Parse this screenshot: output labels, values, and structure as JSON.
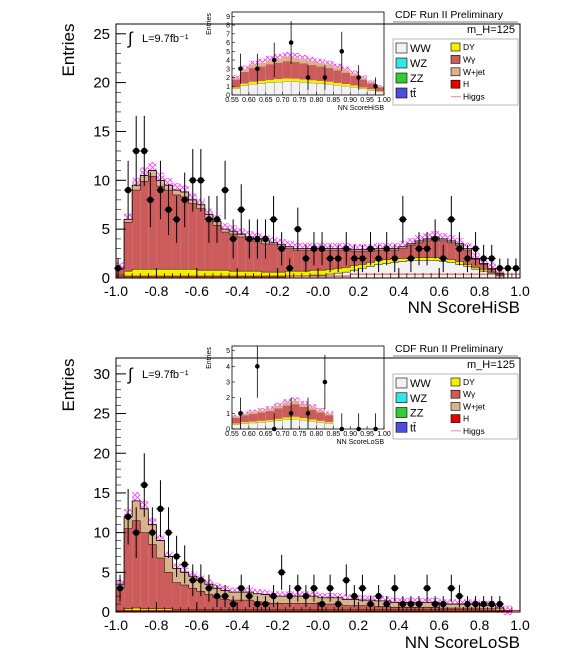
{
  "legend_entries": {
    "ww": "WW",
    "wz": "WZ",
    "zz": "ZZ",
    "tt": "tt̄",
    "dy": "DY",
    "wgamma": "Wγ",
    "wjet": "W+jet",
    "h": "H",
    "higgs": "Higgs"
  },
  "colors": {
    "ww": "#f2f2f2",
    "wz": "#33e5e5",
    "zz": "#33cc33",
    "tt": "#4d4dd9",
    "dy": "#f2f200",
    "wgamma": "#cc5c5c",
    "wjet": "#d9b38c",
    "h": "#e60000",
    "higgs": "#e6a0a0",
    "uncertainty": "#ff33ff"
  },
  "chart_data": [
    {
      "type": "bar",
      "header": "CDF Run II Preliminary",
      "mass_label": "m_H=125",
      "lumi": "L=9.7fb⁻¹",
      "xlabel": "NN ScoreHiSB",
      "ylabel": "Entries",
      "xlim": [
        -1.0,
        1.0
      ],
      "ylim": [
        0,
        26
      ],
      "xticks": [
        "-1.0",
        "-0.8",
        "-0.6",
        "-0.4",
        "-0.2",
        "-0.0",
        "0.2",
        "0.4",
        "0.6",
        "0.8",
        "1.0"
      ],
      "yticks": [
        "0",
        "5",
        "10",
        "15",
        "20",
        "25"
      ],
      "bin_width": 0.04,
      "x_start": -1.0,
      "stack_order": [
        "tt",
        "zz",
        "wz",
        "ww",
        "h",
        "dy",
        "wgamma",
        "wjet"
      ],
      "total": [
        1.0,
        6.0,
        9.5,
        10.5,
        11.0,
        10.0,
        9.5,
        9.0,
        8.8,
        8.0,
        7.5,
        6.5,
        5.8,
        5.0,
        4.8,
        4.5,
        4.2,
        4.0,
        3.8,
        3.6,
        3.4,
        3.2,
        3.0,
        3.0,
        3.0,
        3.0,
        3.0,
        3.0,
        3.0,
        2.9,
        2.9,
        2.9,
        3.0,
        3.0,
        3.0,
        3.2,
        3.5,
        3.8,
        4.0,
        4.2,
        4.0,
        3.8,
        3.5,
        3.0,
        2.0,
        1.5,
        1.0,
        0.5,
        0.0,
        0.0
      ],
      "ww": [
        0.1,
        0.1,
        0.1,
        0.1,
        0.1,
        0.1,
        0.1,
        0.1,
        0.1,
        0.1,
        0.1,
        0.1,
        0.1,
        0.1,
        0.1,
        0.1,
        0.1,
        0.1,
        0.1,
        0.1,
        0.1,
        0.2,
        0.2,
        0.2,
        0.3,
        0.3,
        0.4,
        0.5,
        0.6,
        0.8,
        1.0,
        1.2,
        1.4,
        1.5,
        1.6,
        1.7,
        1.8,
        1.8,
        1.8,
        1.8,
        1.7,
        1.6,
        1.4,
        1.2,
        0.9,
        0.7,
        0.5,
        0.2,
        0.0,
        0.0
      ],
      "dy": [
        0.2,
        0.6,
        0.8,
        0.8,
        0.8,
        0.8,
        0.8,
        0.8,
        0.8,
        0.8,
        0.7,
        0.7,
        0.7,
        0.7,
        0.6,
        0.6,
        0.6,
        0.6,
        0.5,
        0.5,
        0.5,
        0.5,
        0.5,
        0.5,
        0.5,
        0.5,
        0.5,
        0.5,
        0.5,
        0.5,
        0.4,
        0.4,
        0.4,
        0.4,
        0.4,
        0.3,
        0.3,
        0.3,
        0.3,
        0.3,
        0.3,
        0.3,
        0.3,
        0.2,
        0.2,
        0.2,
        0.1,
        0.1,
        0.0,
        0.0
      ],
      "wjet": [
        0.1,
        0.3,
        0.5,
        0.6,
        0.6,
        0.6,
        0.5,
        0.5,
        0.5,
        0.4,
        0.4,
        0.4,
        0.4,
        0.3,
        0.3,
        0.3,
        0.3,
        0.3,
        0.3,
        0.2,
        0.2,
        0.2,
        0.2,
        0.2,
        0.2,
        0.2,
        0.2,
        0.2,
        0.2,
        0.2,
        0.2,
        0.2,
        0.2,
        0.2,
        0.2,
        0.2,
        0.2,
        0.2,
        0.2,
        0.2,
        0.2,
        0.2,
        0.2,
        0.2,
        0.1,
        0.1,
        0.1,
        0.1,
        0.0,
        0.0
      ],
      "data_points": [
        {
          "x": -0.99,
          "y": 1,
          "e": 1.0
        },
        {
          "x": -0.94,
          "y": 9,
          "e": 3.0
        },
        {
          "x": -0.9,
          "y": 13,
          "e": 3.6
        },
        {
          "x": -0.86,
          "y": 13,
          "e": 3.6
        },
        {
          "x": -0.83,
          "y": 8,
          "e": 2.8
        },
        {
          "x": -0.78,
          "y": 9,
          "e": 3.0
        },
        {
          "x": -0.74,
          "y": 7,
          "e": 2.6
        },
        {
          "x": -0.7,
          "y": 6,
          "e": 2.4
        },
        {
          "x": -0.66,
          "y": 8,
          "e": 2.8
        },
        {
          "x": -0.62,
          "y": 10,
          "e": 3.2
        },
        {
          "x": -0.58,
          "y": 10,
          "e": 3.2
        },
        {
          "x": -0.54,
          "y": 6,
          "e": 2.4
        },
        {
          "x": -0.5,
          "y": 6,
          "e": 2.4
        },
        {
          "x": -0.46,
          "y": 9,
          "e": 3.0
        },
        {
          "x": -0.42,
          "y": 4,
          "e": 2.0
        },
        {
          "x": -0.38,
          "y": 7,
          "e": 2.6
        },
        {
          "x": -0.34,
          "y": 4,
          "e": 2.0
        },
        {
          "x": -0.3,
          "y": 4,
          "e": 2.0
        },
        {
          "x": -0.26,
          "y": 4,
          "e": 2.0
        },
        {
          "x": -0.22,
          "y": 6,
          "e": 2.4
        },
        {
          "x": -0.18,
          "y": 3,
          "e": 1.7
        },
        {
          "x": -0.14,
          "y": 1,
          "e": 1.0
        },
        {
          "x": -0.1,
          "y": 5,
          "e": 2.2
        },
        {
          "x": -0.06,
          "y": 2,
          "e": 1.4
        },
        {
          "x": -0.02,
          "y": 3,
          "e": 1.7
        },
        {
          "x": 0.02,
          "y": 3,
          "e": 1.7
        },
        {
          "x": 0.06,
          "y": 2,
          "e": 1.4
        },
        {
          "x": 0.1,
          "y": 2,
          "e": 1.4
        },
        {
          "x": 0.14,
          "y": 3,
          "e": 1.7
        },
        {
          "x": 0.18,
          "y": 2,
          "e": 1.4
        },
        {
          "x": 0.22,
          "y": 2,
          "e": 1.4
        },
        {
          "x": 0.26,
          "y": 3,
          "e": 1.7
        },
        {
          "x": 0.3,
          "y": 2,
          "e": 1.4
        },
        {
          "x": 0.34,
          "y": 3,
          "e": 1.7
        },
        {
          "x": 0.38,
          "y": 2,
          "e": 1.4
        },
        {
          "x": 0.42,
          "y": 6,
          "e": 2.4
        },
        {
          "x": 0.46,
          "y": 2,
          "e": 1.4
        },
        {
          "x": 0.5,
          "y": 3,
          "e": 1.7
        },
        {
          "x": 0.54,
          "y": 3,
          "e": 1.7
        },
        {
          "x": 0.58,
          "y": 4,
          "e": 2.0
        },
        {
          "x": 0.62,
          "y": 2,
          "e": 1.4
        },
        {
          "x": 0.66,
          "y": 6,
          "e": 2.4
        },
        {
          "x": 0.7,
          "y": 3,
          "e": 1.7
        },
        {
          "x": 0.74,
          "y": 2,
          "e": 1.4
        },
        {
          "x": 0.78,
          "y": 3,
          "e": 1.7
        },
        {
          "x": 0.82,
          "y": 2,
          "e": 1.4
        },
        {
          "x": 0.86,
          "y": 2,
          "e": 1.4
        },
        {
          "x": 0.9,
          "y": 1,
          "e": 1.0
        },
        {
          "x": 0.94,
          "y": 1,
          "e": 1.0
        },
        {
          "x": 0.98,
          "y": 1,
          "e": 1.0
        }
      ],
      "inset": {
        "ylabel": "Entries",
        "xlabel": "NN ScoreHiSB",
        "xlim": [
          0.55,
          1.0
        ],
        "ylim": [
          0,
          9.5
        ],
        "xticks": [
          "0.55",
          "0.60",
          "0.65",
          "0.70",
          "0.75",
          "0.80",
          "0.85",
          "0.90",
          "0.95",
          "1.00"
        ],
        "yticks": [
          "0",
          "1",
          "2",
          "3",
          "4",
          "5",
          "6",
          "7",
          "8",
          "9"
        ],
        "total": [
          2.0,
          3.0,
          3.5,
          3.7,
          4.0,
          4.2,
          4.4,
          4.3,
          4.1,
          3.9,
          3.7,
          3.5,
          3.2,
          2.9,
          2.5,
          2.0,
          1.5,
          1.0
        ],
        "data_points": [
          {
            "x": 0.575,
            "y": 3
          },
          {
            "x": 0.625,
            "y": 3
          },
          {
            "x": 0.675,
            "y": 4
          },
          {
            "x": 0.725,
            "y": 6
          },
          {
            "x": 0.775,
            "y": 2
          },
          {
            "x": 0.825,
            "y": 2
          },
          {
            "x": 0.875,
            "y": 5
          },
          {
            "x": 0.925,
            "y": 2
          },
          {
            "x": 0.975,
            "y": 1
          }
        ]
      }
    },
    {
      "type": "bar",
      "header": "CDF Run II Preliminary",
      "mass_label": "m_H=125",
      "lumi": "L=9.7fb⁻¹",
      "xlabel": "NN ScoreLoSB",
      "ylabel": "Entries",
      "xlim": [
        -1.0,
        1.0
      ],
      "ylim": [
        0,
        32
      ],
      "xticks": [
        "-1.0",
        "-0.8",
        "-0.6",
        "-0.4",
        "-0.2",
        "-0.0",
        "0.2",
        "0.4",
        "0.6",
        "0.8",
        "1.0"
      ],
      "yticks": [
        "0",
        "5",
        "10",
        "15",
        "20",
        "25",
        "30"
      ],
      "bin_width": 0.04,
      "x_start": -1.0,
      "stack_order": [
        "tt",
        "zz",
        "wz",
        "ww",
        "h",
        "dy",
        "wgamma",
        "wjet"
      ],
      "total": [
        3.5,
        12.0,
        14.0,
        13.0,
        11.0,
        9.0,
        7.0,
        5.5,
        5.0,
        4.5,
        4.0,
        3.5,
        3.0,
        2.7,
        2.5,
        2.5,
        2.5,
        2.3,
        2.2,
        2.0,
        2.0,
        2.0,
        2.0,
        2.0,
        2.0,
        1.8,
        1.8,
        1.8,
        1.6,
        1.6,
        1.5,
        1.5,
        1.4,
        1.4,
        1.2,
        1.2,
        1.2,
        1.2,
        1.2,
        1.2,
        1.0,
        1.0,
        1.0,
        1.0,
        1.0,
        0.8,
        0.8,
        0.5,
        0.2,
        0.0
      ],
      "ww": [
        0.0,
        0.1,
        0.1,
        0.1,
        0.1,
        0.1,
        0.1,
        0.1,
        0.1,
        0.1,
        0.1,
        0.1,
        0.1,
        0.1,
        0.1,
        0.1,
        0.1,
        0.1,
        0.1,
        0.1,
        0.1,
        0.1,
        0.1,
        0.1,
        0.1,
        0.1,
        0.1,
        0.1,
        0.1,
        0.1,
        0.1,
        0.1,
        0.1,
        0.1,
        0.1,
        0.1,
        0.1,
        0.1,
        0.1,
        0.1,
        0.1,
        0.1,
        0.1,
        0.1,
        0.1,
        0.1,
        0.1,
        0.0,
        0.0,
        0.0
      ],
      "dy": [
        0.1,
        0.3,
        0.4,
        0.3,
        0.3,
        0.3,
        0.3,
        0.2,
        0.2,
        0.2,
        0.2,
        0.2,
        0.2,
        0.2,
        0.2,
        0.2,
        0.2,
        0.2,
        0.2,
        0.2,
        0.2,
        0.2,
        0.2,
        0.2,
        0.2,
        0.2,
        0.2,
        0.2,
        0.2,
        0.2,
        0.2,
        0.2,
        0.2,
        0.2,
        0.2,
        0.2,
        0.2,
        0.2,
        0.2,
        0.2,
        0.2,
        0.2,
        0.2,
        0.2,
        0.2,
        0.1,
        0.1,
        0.1,
        0.0,
        0.0
      ],
      "wjet": [
        0.5,
        1.5,
        2.5,
        3.0,
        2.5,
        2.2,
        2.0,
        1.8,
        1.6,
        1.5,
        1.4,
        1.3,
        1.2,
        1.1,
        1.0,
        1.0,
        1.0,
        1.0,
        1.0,
        0.9,
        0.9,
        0.9,
        0.9,
        0.9,
        0.9,
        0.8,
        0.8,
        0.8,
        0.8,
        0.8,
        0.7,
        0.7,
        0.7,
        0.7,
        0.6,
        0.6,
        0.6,
        0.6,
        0.6,
        0.6,
        0.5,
        0.5,
        0.5,
        0.5,
        0.5,
        0.4,
        0.4,
        0.3,
        0.1,
        0.0
      ],
      "data_points": [
        {
          "x": -0.98,
          "y": 3,
          "e": 1.7
        },
        {
          "x": -0.94,
          "y": 12,
          "e": 3.5
        },
        {
          "x": -0.9,
          "y": 10,
          "e": 3.2
        },
        {
          "x": -0.86,
          "y": 16,
          "e": 4.0
        },
        {
          "x": -0.82,
          "y": 10,
          "e": 3.2
        },
        {
          "x": -0.78,
          "y": 13,
          "e": 3.6
        },
        {
          "x": -0.74,
          "y": 10,
          "e": 3.2
        },
        {
          "x": -0.7,
          "y": 7,
          "e": 2.6
        },
        {
          "x": -0.66,
          "y": 6,
          "e": 2.4
        },
        {
          "x": -0.62,
          "y": 4,
          "e": 2.0
        },
        {
          "x": -0.58,
          "y": 4,
          "e": 2.0
        },
        {
          "x": -0.54,
          "y": 3,
          "e": 1.7
        },
        {
          "x": -0.5,
          "y": 2,
          "e": 1.4
        },
        {
          "x": -0.46,
          "y": 2,
          "e": 1.4
        },
        {
          "x": -0.42,
          "y": 1,
          "e": 1.0
        },
        {
          "x": -0.38,
          "y": 3,
          "e": 1.7
        },
        {
          "x": -0.34,
          "y": 2,
          "e": 1.4
        },
        {
          "x": -0.3,
          "y": 1,
          "e": 1.0
        },
        {
          "x": -0.26,
          "y": 1,
          "e": 1.0
        },
        {
          "x": -0.22,
          "y": 2,
          "e": 1.4
        },
        {
          "x": -0.18,
          "y": 5,
          "e": 2.2
        },
        {
          "x": -0.14,
          "y": 2,
          "e": 1.4
        },
        {
          "x": -0.1,
          "y": 3,
          "e": 1.7
        },
        {
          "x": -0.06,
          "y": 2,
          "e": 1.4
        },
        {
          "x": -0.02,
          "y": 3,
          "e": 1.7
        },
        {
          "x": 0.02,
          "y": 1,
          "e": 1.0
        },
        {
          "x": 0.06,
          "y": 3,
          "e": 1.7
        },
        {
          "x": 0.1,
          "y": 1,
          "e": 1.0
        },
        {
          "x": 0.14,
          "y": 4,
          "e": 2.0
        },
        {
          "x": 0.18,
          "y": 2,
          "e": 1.4
        },
        {
          "x": 0.22,
          "y": 3,
          "e": 1.7
        },
        {
          "x": 0.26,
          "y": 1,
          "e": 1.0
        },
        {
          "x": 0.3,
          "y": 2,
          "e": 1.4
        },
        {
          "x": 0.34,
          "y": 1,
          "e": 1.0
        },
        {
          "x": 0.38,
          "y": 3,
          "e": 1.7
        },
        {
          "x": 0.42,
          "y": 1,
          "e": 1.0
        },
        {
          "x": 0.46,
          "y": 1,
          "e": 1.0
        },
        {
          "x": 0.5,
          "y": 1,
          "e": 1.0
        },
        {
          "x": 0.54,
          "y": 3,
          "e": 1.7
        },
        {
          "x": 0.58,
          "y": 1,
          "e": 1.0
        },
        {
          "x": 0.62,
          "y": 1,
          "e": 1.0
        },
        {
          "x": 0.66,
          "y": 3,
          "e": 1.7
        },
        {
          "x": 0.7,
          "y": 2,
          "e": 1.4
        },
        {
          "x": 0.74,
          "y": 1,
          "e": 1.0
        },
        {
          "x": 0.78,
          "y": 1,
          "e": 1.0
        },
        {
          "x": 0.82,
          "y": 1,
          "e": 1.0
        },
        {
          "x": 0.86,
          "y": 1,
          "e": 1.0
        },
        {
          "x": 0.9,
          "y": 1,
          "e": 1.0
        }
      ],
      "inset": {
        "ylabel": "Entries",
        "xlabel": "NN ScoreLoSB",
        "xlim": [
          0.55,
          1.0
        ],
        "ylim": [
          0,
          5.3
        ],
        "xticks": [
          "0.55",
          "0.60",
          "0.65",
          "0.70",
          "0.75",
          "0.80",
          "0.85",
          "0.90",
          "0.95",
          "1.00"
        ],
        "yticks": [
          "0",
          "1",
          "2",
          "3",
          "4",
          "5"
        ],
        "total": [
          0.8,
          1.0,
          1.1,
          1.2,
          1.3,
          1.5,
          1.7,
          1.8,
          1.6,
          1.4,
          1.2,
          1.0,
          0.0,
          0.0,
          0.0,
          0.0,
          0.0,
          0.0
        ],
        "data_points": [
          {
            "x": 0.575,
            "y": 1
          },
          {
            "x": 0.625,
            "y": 4
          },
          {
            "x": 0.675,
            "y": 0
          },
          {
            "x": 0.725,
            "y": 1
          },
          {
            "x": 0.775,
            "y": 1
          },
          {
            "x": 0.825,
            "y": 3
          },
          {
            "x": 0.875,
            "y": 0
          },
          {
            "x": 0.925,
            "y": 0
          },
          {
            "x": 0.975,
            "y": 0
          }
        ]
      }
    }
  ]
}
